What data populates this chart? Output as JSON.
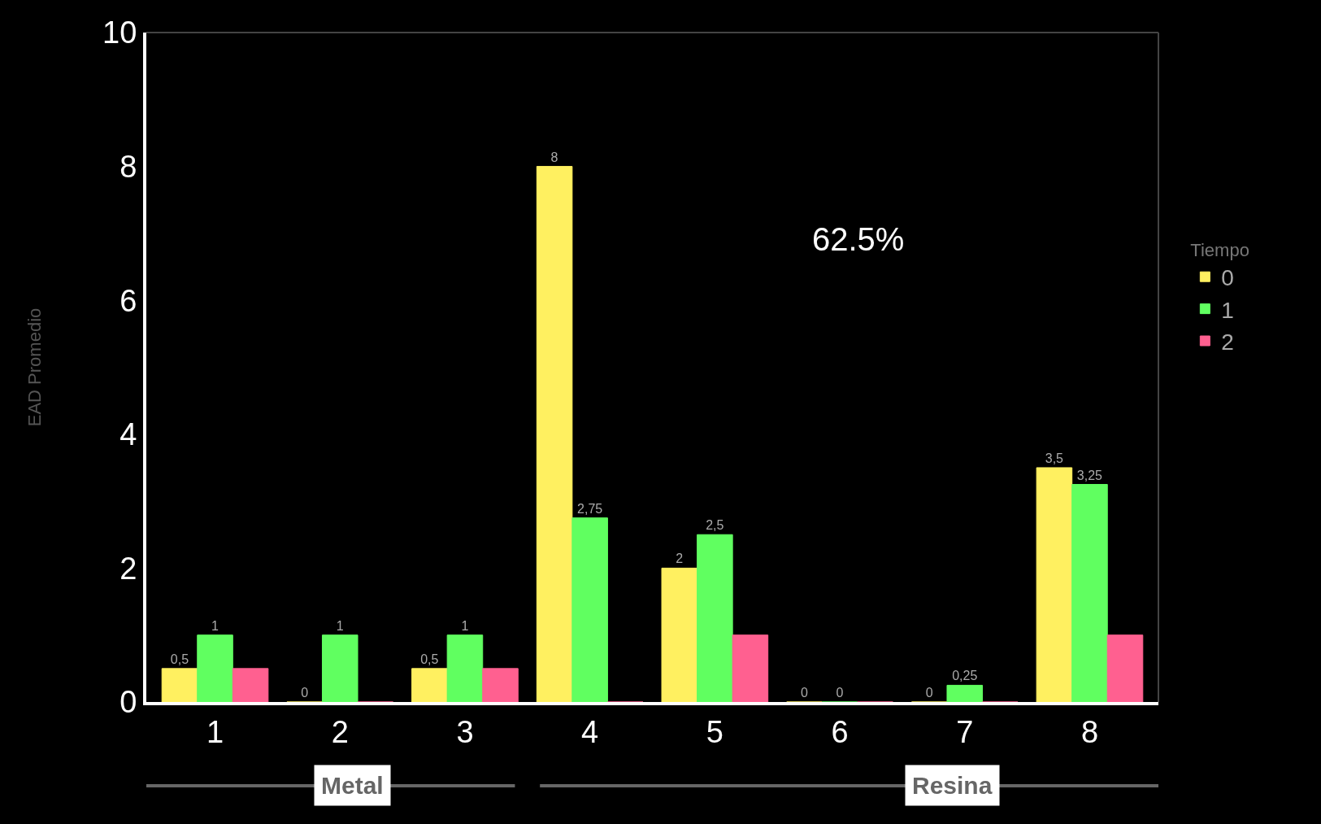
{
  "chart_data": {
    "type": "bar",
    "categories": [
      "1",
      "2",
      "3",
      "4",
      "5",
      "6",
      "7",
      "8"
    ],
    "ylabel": "EAD Promedio",
    "legend_title": "Tiempo",
    "series": [
      {
        "name": "0",
        "color": "#fff060",
        "values": [
          0.5,
          0,
          0.5,
          8,
          2,
          0,
          0,
          3.5
        ],
        "value_labels": [
          "0,5",
          "0",
          "0,5",
          "8",
          "2",
          "0",
          "0",
          "3,5"
        ]
      },
      {
        "name": "1",
        "color": "#60ff60",
        "values": [
          1,
          1,
          1,
          2.75,
          2.5,
          0,
          0.25,
          3.25
        ],
        "value_labels": [
          "1",
          "1",
          "1",
          "2,75",
          "2,5",
          "0",
          "0,25",
          "3,25"
        ]
      },
      {
        "name": "2",
        "color": "#ff6090",
        "values": [
          0.5,
          0,
          0.5,
          0,
          1,
          0,
          0,
          1
        ],
        "value_labels": [
          null,
          null,
          null,
          null,
          null,
          null,
          null,
          null
        ]
      }
    ],
    "ylim": [
      0,
      10
    ],
    "yticks": [
      0,
      2,
      4,
      6,
      8,
      10
    ],
    "grid": false,
    "legend": "right",
    "annotations": [
      "62.5%",
      "Metal",
      "Resina"
    ]
  }
}
